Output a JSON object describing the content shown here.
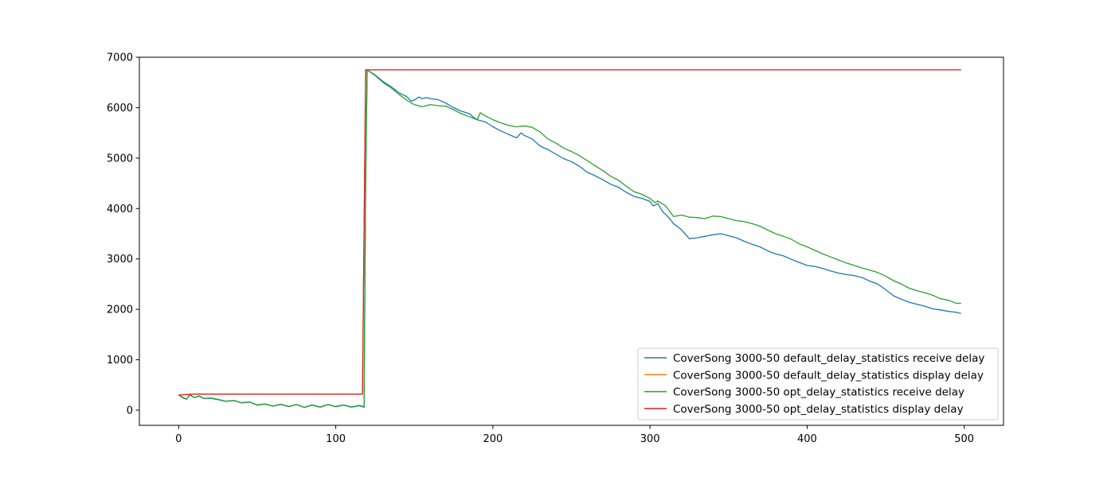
{
  "chart_data": {
    "type": "line",
    "title": "",
    "xlabel": "",
    "ylabel": "",
    "xlim": [
      -25,
      525
    ],
    "ylim": [
      -300,
      7000
    ],
    "xticks": [
      0,
      100,
      200,
      300,
      400,
      500
    ],
    "yticks": [
      0,
      1000,
      2000,
      3000,
      4000,
      5000,
      6000,
      7000
    ],
    "grid": false,
    "legend_position": "lower-right",
    "series": [
      {
        "name": "CoverSong 3000-50 default_delay_statistics receive delay",
        "color": "#1f77b4",
        "points": [
          [
            0,
            300
          ],
          [
            3,
            250
          ],
          [
            5,
            215
          ],
          [
            7,
            300
          ],
          [
            10,
            250
          ],
          [
            13,
            280
          ],
          [
            16,
            230
          ],
          [
            20,
            240
          ],
          [
            25,
            210
          ],
          [
            30,
            175
          ],
          [
            35,
            190
          ],
          [
            40,
            145
          ],
          [
            45,
            160
          ],
          [
            50,
            100
          ],
          [
            55,
            120
          ],
          [
            60,
            80
          ],
          [
            65,
            115
          ],
          [
            70,
            70
          ],
          [
            75,
            110
          ],
          [
            80,
            55
          ],
          [
            85,
            100
          ],
          [
            90,
            60
          ],
          [
            95,
            110
          ],
          [
            100,
            70
          ],
          [
            105,
            100
          ],
          [
            110,
            60
          ],
          [
            115,
            90
          ],
          [
            118,
            60
          ],
          [
            119,
            4500
          ],
          [
            120,
            6750
          ],
          [
            125,
            6650
          ],
          [
            130,
            6520
          ],
          [
            135,
            6420
          ],
          [
            140,
            6300
          ],
          [
            145,
            6220
          ],
          [
            148,
            6130
          ],
          [
            150,
            6150
          ],
          [
            153,
            6210
          ],
          [
            155,
            6180
          ],
          [
            158,
            6200
          ],
          [
            160,
            6180
          ],
          [
            165,
            6160
          ],
          [
            170,
            6090
          ],
          [
            175,
            6000
          ],
          [
            180,
            5930
          ],
          [
            185,
            5880
          ],
          [
            188,
            5800
          ],
          [
            190,
            5760
          ],
          [
            195,
            5720
          ],
          [
            200,
            5620
          ],
          [
            205,
            5540
          ],
          [
            210,
            5470
          ],
          [
            213,
            5430
          ],
          [
            215,
            5400
          ],
          [
            218,
            5500
          ],
          [
            220,
            5450
          ],
          [
            225,
            5380
          ],
          [
            230,
            5240
          ],
          [
            235,
            5170
          ],
          [
            240,
            5080
          ],
          [
            245,
            4990
          ],
          [
            250,
            4930
          ],
          [
            255,
            4840
          ],
          [
            260,
            4720
          ],
          [
            265,
            4650
          ],
          [
            270,
            4570
          ],
          [
            275,
            4480
          ],
          [
            280,
            4420
          ],
          [
            285,
            4320
          ],
          [
            290,
            4240
          ],
          [
            295,
            4200
          ],
          [
            300,
            4140
          ],
          [
            302,
            4050
          ],
          [
            305,
            4100
          ],
          [
            308,
            3940
          ],
          [
            312,
            3820
          ],
          [
            315,
            3700
          ],
          [
            320,
            3580
          ],
          [
            325,
            3400
          ],
          [
            330,
            3420
          ],
          [
            335,
            3450
          ],
          [
            340,
            3480
          ],
          [
            345,
            3500
          ],
          [
            350,
            3460
          ],
          [
            355,
            3420
          ],
          [
            360,
            3350
          ],
          [
            365,
            3290
          ],
          [
            370,
            3240
          ],
          [
            375,
            3160
          ],
          [
            380,
            3100
          ],
          [
            385,
            3060
          ],
          [
            390,
            2990
          ],
          [
            395,
            2930
          ],
          [
            400,
            2870
          ],
          [
            405,
            2850
          ],
          [
            410,
            2810
          ],
          [
            415,
            2760
          ],
          [
            420,
            2720
          ],
          [
            425,
            2690
          ],
          [
            430,
            2670
          ],
          [
            435,
            2630
          ],
          [
            440,
            2560
          ],
          [
            445,
            2500
          ],
          [
            450,
            2390
          ],
          [
            455,
            2270
          ],
          [
            460,
            2200
          ],
          [
            465,
            2140
          ],
          [
            470,
            2100
          ],
          [
            475,
            2060
          ],
          [
            480,
            2010
          ],
          [
            485,
            1990
          ],
          [
            490,
            1960
          ],
          [
            495,
            1940
          ],
          [
            498,
            1920
          ]
        ]
      },
      {
        "name": "CoverSong 3000-50 default_delay_statistics display delay",
        "color": "#ff7f0e",
        "points": [
          [
            0,
            300
          ],
          [
            5,
            310
          ],
          [
            10,
            320
          ],
          [
            117,
            320
          ],
          [
            119,
            6750
          ],
          [
            498,
            6750
          ]
        ]
      },
      {
        "name": "CoverSong 3000-50 opt_delay_statistics receive delay",
        "color": "#2ca02c",
        "points": [
          [
            0,
            300
          ],
          [
            3,
            240
          ],
          [
            5,
            215
          ],
          [
            7,
            310
          ],
          [
            10,
            250
          ],
          [
            13,
            285
          ],
          [
            16,
            235
          ],
          [
            20,
            245
          ],
          [
            25,
            215
          ],
          [
            30,
            180
          ],
          [
            35,
            195
          ],
          [
            40,
            150
          ],
          [
            45,
            165
          ],
          [
            50,
            105
          ],
          [
            55,
            125
          ],
          [
            60,
            85
          ],
          [
            65,
            120
          ],
          [
            70,
            75
          ],
          [
            75,
            115
          ],
          [
            80,
            60
          ],
          [
            85,
            105
          ],
          [
            90,
            65
          ],
          [
            95,
            115
          ],
          [
            100,
            75
          ],
          [
            105,
            105
          ],
          [
            110,
            65
          ],
          [
            115,
            95
          ],
          [
            118,
            70
          ],
          [
            119,
            4500
          ],
          [
            120,
            6750
          ],
          [
            125,
            6640
          ],
          [
            130,
            6500
          ],
          [
            135,
            6400
          ],
          [
            140,
            6270
          ],
          [
            145,
            6150
          ],
          [
            150,
            6060
          ],
          [
            155,
            6020
          ],
          [
            160,
            6060
          ],
          [
            165,
            6040
          ],
          [
            170,
            6030
          ],
          [
            175,
            5960
          ],
          [
            180,
            5880
          ],
          [
            185,
            5820
          ],
          [
            190,
            5760
          ],
          [
            192,
            5900
          ],
          [
            195,
            5840
          ],
          [
            200,
            5760
          ],
          [
            205,
            5700
          ],
          [
            210,
            5650
          ],
          [
            215,
            5620
          ],
          [
            220,
            5640
          ],
          [
            225,
            5610
          ],
          [
            230,
            5520
          ],
          [
            235,
            5380
          ],
          [
            240,
            5300
          ],
          [
            245,
            5200
          ],
          [
            250,
            5130
          ],
          [
            255,
            5050
          ],
          [
            260,
            4950
          ],
          [
            265,
            4850
          ],
          [
            270,
            4750
          ],
          [
            275,
            4640
          ],
          [
            280,
            4560
          ],
          [
            285,
            4440
          ],
          [
            290,
            4330
          ],
          [
            295,
            4280
          ],
          [
            300,
            4200
          ],
          [
            303,
            4120
          ],
          [
            305,
            4150
          ],
          [
            310,
            4050
          ],
          [
            315,
            3840
          ],
          [
            320,
            3870
          ],
          [
            325,
            3830
          ],
          [
            330,
            3820
          ],
          [
            335,
            3800
          ],
          [
            340,
            3850
          ],
          [
            345,
            3840
          ],
          [
            350,
            3800
          ],
          [
            355,
            3760
          ],
          [
            360,
            3740
          ],
          [
            365,
            3700
          ],
          [
            370,
            3650
          ],
          [
            375,
            3570
          ],
          [
            380,
            3500
          ],
          [
            385,
            3450
          ],
          [
            390,
            3390
          ],
          [
            395,
            3300
          ],
          [
            400,
            3240
          ],
          [
            405,
            3170
          ],
          [
            410,
            3100
          ],
          [
            415,
            3040
          ],
          [
            420,
            2980
          ],
          [
            425,
            2920
          ],
          [
            430,
            2870
          ],
          [
            435,
            2820
          ],
          [
            440,
            2780
          ],
          [
            445,
            2730
          ],
          [
            450,
            2660
          ],
          [
            455,
            2570
          ],
          [
            460,
            2500
          ],
          [
            465,
            2420
          ],
          [
            470,
            2370
          ],
          [
            475,
            2330
          ],
          [
            480,
            2280
          ],
          [
            485,
            2210
          ],
          [
            490,
            2180
          ],
          [
            495,
            2120
          ],
          [
            498,
            2120
          ]
        ]
      },
      {
        "name": "CoverSong 3000-50 opt_delay_statistics display delay",
        "color": "#d62728",
        "points": [
          [
            0,
            300
          ],
          [
            5,
            310
          ],
          [
            10,
            320
          ],
          [
            117,
            320
          ],
          [
            119,
            6750
          ],
          [
            498,
            6750
          ]
        ]
      }
    ]
  }
}
